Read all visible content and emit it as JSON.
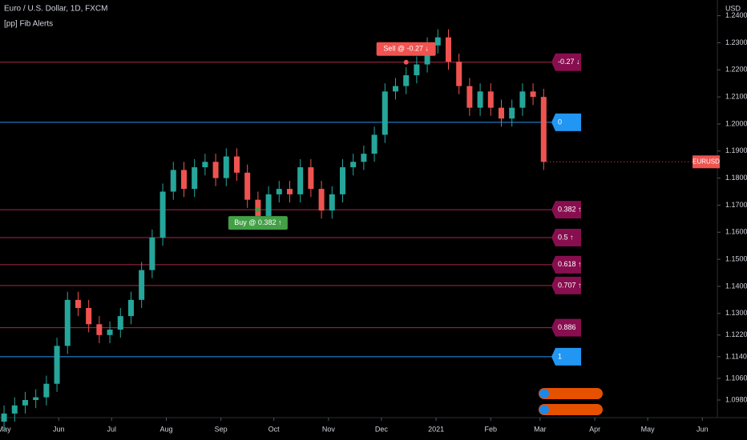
{
  "chart_data": {
    "type": "candlestick",
    "title": "Euro / U.S. Dollar, 1D, FXCM",
    "subtitle": "[pp] Fib Alerts",
    "y_axis_label": "USD",
    "symbol_label": "EURUSD",
    "up_color": "#26a69a",
    "down_color": "#ef5350",
    "grid": false,
    "xlim": [
      -2.3,
      404.5
    ],
    "ylim": [
      1.0915,
      1.2458
    ],
    "xticks": [
      {
        "value": 0,
        "label": "May"
      },
      {
        "value": 31,
        "label": "Jun"
      },
      {
        "value": 61,
        "label": "Jul"
      },
      {
        "value": 92,
        "label": "Aug"
      },
      {
        "value": 123,
        "label": "Sep"
      },
      {
        "value": 153,
        "label": "Oct"
      },
      {
        "value": 184,
        "label": "Nov"
      },
      {
        "value": 214,
        "label": "Dec"
      },
      {
        "value": 245,
        "label": "2021"
      },
      {
        "value": 276,
        "label": "Feb"
      },
      {
        "value": 304,
        "label": "Mar"
      },
      {
        "value": 335,
        "label": "Apr"
      },
      {
        "value": 365,
        "label": "May"
      },
      {
        "value": 396,
        "label": "Jun"
      }
    ],
    "yticks": [
      {
        "value": 1.24,
        "label": "1.24000"
      },
      {
        "value": 1.23,
        "label": "1.23000"
      },
      {
        "value": 1.22,
        "label": "1.22000"
      },
      {
        "value": 1.21,
        "label": "1.21000"
      },
      {
        "value": 1.2,
        "label": "1.20000"
      },
      {
        "value": 1.19,
        "label": "1.19000"
      },
      {
        "value": 1.18,
        "label": "1.18000"
      },
      {
        "value": 1.17,
        "label": "1.17000"
      },
      {
        "value": 1.16,
        "label": "1.16000"
      },
      {
        "value": 1.15,
        "label": "1.15000"
      },
      {
        "value": 1.14,
        "label": "1.14000"
      },
      {
        "value": 1.13,
        "label": "1.13000"
      },
      {
        "value": 1.122,
        "label": "1.12200"
      },
      {
        "value": 1.114,
        "label": "1.11400"
      },
      {
        "value": 1.106,
        "label": "1.10600"
      },
      {
        "value": 1.098,
        "label": "1.09800"
      }
    ],
    "x": [
      0,
      6,
      12,
      18,
      24,
      30,
      36,
      42,
      48,
      54,
      60,
      66,
      72,
      78,
      84,
      90,
      96,
      102,
      108,
      114,
      120,
      126,
      132,
      138,
      144,
      150,
      156,
      162,
      168,
      174,
      180,
      186,
      192,
      198,
      204,
      210,
      216,
      222,
      228,
      234,
      240,
      246,
      252,
      258,
      264,
      270,
      276,
      282,
      288,
      294,
      300,
      306
    ],
    "open": [
      1.09,
      1.093,
      1.096,
      1.098,
      1.099,
      1.104,
      1.118,
      1.135,
      1.132,
      1.126,
      1.122,
      1.124,
      1.129,
      1.135,
      1.146,
      1.158,
      1.175,
      1.183,
      1.176,
      1.184,
      1.186,
      1.18,
      1.188,
      1.182,
      1.172,
      1.166,
      1.174,
      1.176,
      1.174,
      1.184,
      1.176,
      1.168,
      1.174,
      1.184,
      1.186,
      1.189,
      1.196,
      1.212,
      1.214,
      1.218,
      1.222,
      1.229,
      1.232,
      1.223,
      1.214,
      1.206,
      1.212,
      1.206,
      1.202,
      1.206,
      1.212,
      1.21
    ],
    "high": [
      1.096,
      1.099,
      1.101,
      1.102,
      1.107,
      1.121,
      1.138,
      1.138,
      1.135,
      1.129,
      1.127,
      1.132,
      1.138,
      1.149,
      1.161,
      1.178,
      1.186,
      1.186,
      1.187,
      1.189,
      1.189,
      1.191,
      1.191,
      1.185,
      1.175,
      1.177,
      1.179,
      1.179,
      1.187,
      1.187,
      1.179,
      1.177,
      1.187,
      1.189,
      1.192,
      1.199,
      1.215,
      1.217,
      1.221,
      1.225,
      1.232,
      1.235,
      1.235,
      1.226,
      1.217,
      1.215,
      1.215,
      1.209,
      1.209,
      1.215,
      1.215,
      1.213
    ],
    "low": [
      1.087,
      1.09,
      1.093,
      1.095,
      1.096,
      1.101,
      1.115,
      1.129,
      1.123,
      1.119,
      1.119,
      1.121,
      1.126,
      1.132,
      1.143,
      1.155,
      1.172,
      1.173,
      1.173,
      1.181,
      1.177,
      1.177,
      1.179,
      1.169,
      1.163,
      1.163,
      1.171,
      1.171,
      1.171,
      1.173,
      1.165,
      1.165,
      1.171,
      1.181,
      1.183,
      1.186,
      1.193,
      1.209,
      1.211,
      1.215,
      1.219,
      1.226,
      1.22,
      1.211,
      1.203,
      1.203,
      1.203,
      1.199,
      1.199,
      1.203,
      1.207,
      1.183
    ],
    "close": [
      1.093,
      1.096,
      1.098,
      1.099,
      1.104,
      1.118,
      1.135,
      1.132,
      1.126,
      1.122,
      1.124,
      1.129,
      1.135,
      1.146,
      1.158,
      1.175,
      1.183,
      1.176,
      1.184,
      1.186,
      1.18,
      1.188,
      1.182,
      1.172,
      1.166,
      1.174,
      1.176,
      1.174,
      1.184,
      1.176,
      1.168,
      1.174,
      1.184,
      1.186,
      1.189,
      1.196,
      1.212,
      1.214,
      1.218,
      1.222,
      1.229,
      1.232,
      1.223,
      1.214,
      1.206,
      1.212,
      1.206,
      1.202,
      1.206,
      1.212,
      1.21,
      1.186
    ],
    "levels": [
      {
        "label": "-0.27 ↓",
        "value": 1.2228,
        "color": "#a52a4a",
        "box": "#880e4f"
      },
      {
        "label": "0",
        "value": 1.2006,
        "color": "#2196f3",
        "box": "#2196f3"
      },
      {
        "label": "0.382 ↑",
        "value": 1.1683,
        "color": "#a52a4a",
        "box": "#880e4f"
      },
      {
        "label": "0.5 ↑",
        "value": 1.158,
        "color": "#a52a4a",
        "box": "#880e4f"
      },
      {
        "label": "0.618 ↑",
        "value": 1.148,
        "color": "#a52a4a",
        "box": "#880e4f"
      },
      {
        "label": "0.707 ↑",
        "value": 1.1403,
        "color": "#a52a4a",
        "box": "#880e4f"
      },
      {
        "label": "0.886",
        "value": 1.1247,
        "color": "#a52a4a",
        "box": "#880e4f"
      },
      {
        "label": "1",
        "value": 1.114,
        "color": "#2196f3",
        "box": "#2196f3"
      }
    ],
    "annotations": [
      {
        "text": "Sell @ -0.27 ↓",
        "x": 228,
        "y": 1.2228,
        "color": "#f05350",
        "side": "above"
      },
      {
        "text": "Buy @ 0.382 ↑",
        "x": 144,
        "y": 1.1683,
        "color": "#43a047",
        "side": "below"
      }
    ]
  }
}
